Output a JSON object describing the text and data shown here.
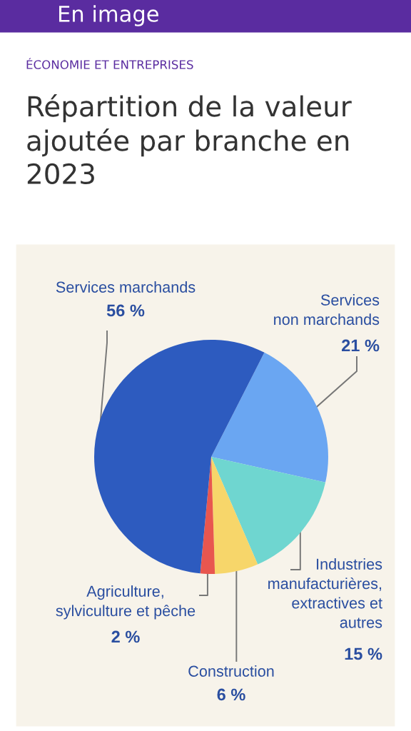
{
  "chart_data": {
    "type": "pie",
    "title": "Répartition de la valeur ajoutée par branche en 2023",
    "subtitle": "ÉCONOMIE ET ENTREPRISES",
    "annotations": [
      "En image"
    ],
    "categories": [
      "Services\nnon marchands",
      "Industries\nmanufacturières,\nextractives et\nautres",
      "Construction",
      "Agriculture,\nsylviculture et pêche",
      "Services marchands"
    ],
    "values": [
      21,
      15,
      6,
      2,
      56
    ],
    "value_labels": [
      "21 %",
      "15 %",
      "6 %",
      "2 %",
      "56 %"
    ],
    "colors": [
      "#6aa6f2",
      "#6fd6d0",
      "#f7d66a",
      "#e8564f",
      "#2d5bbf"
    ]
  }
}
